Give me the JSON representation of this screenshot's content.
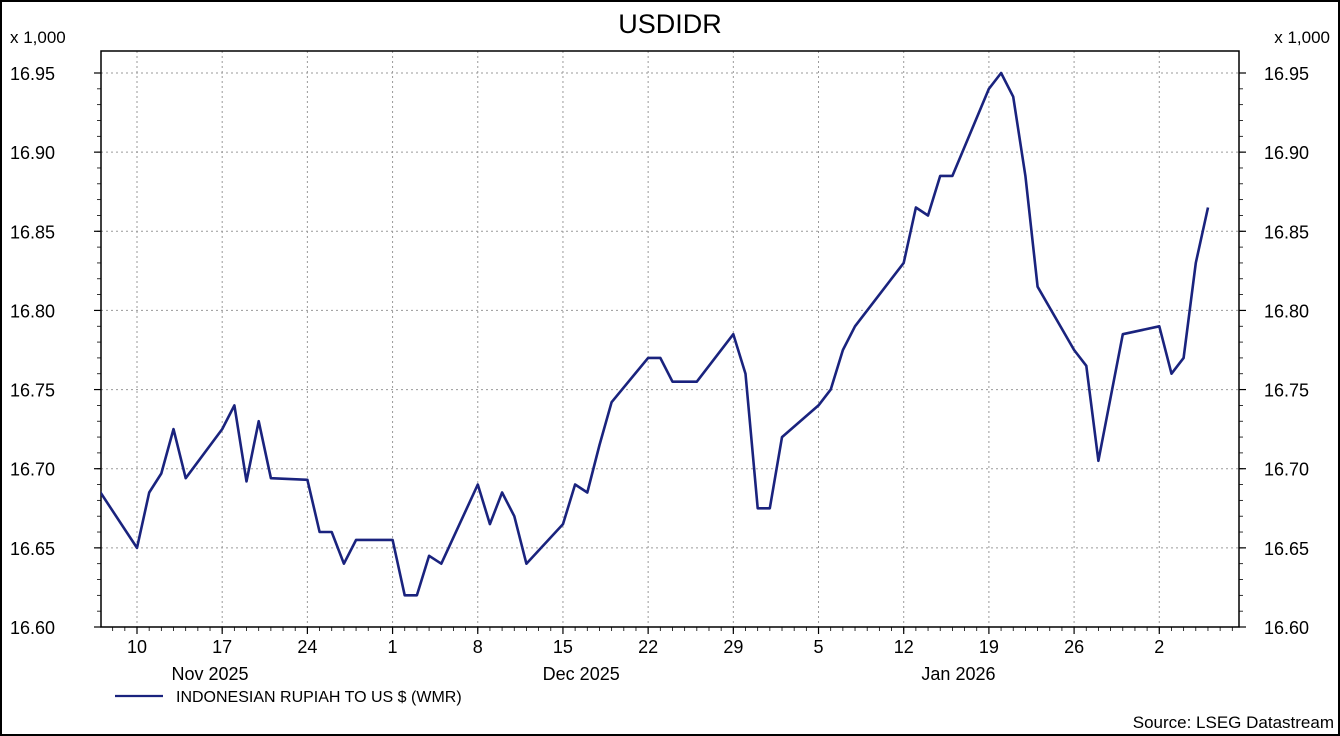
{
  "chart_data": {
    "type": "line",
    "title": "USDIDR",
    "y_unit_left": "x 1,000",
    "y_unit_right": "x 1,000",
    "ylim": [
      16.6,
      16.955
    ],
    "yticks": [
      "16.95",
      "16.90",
      "16.85",
      "16.80",
      "16.75",
      "16.70",
      "16.65",
      "16.60"
    ],
    "ytick_values": [
      16.95,
      16.9,
      16.85,
      16.8,
      16.75,
      16.7,
      16.65,
      16.6
    ],
    "xtick_labels": [
      "10",
      "17",
      "24",
      "1",
      "8",
      "15",
      "22",
      "29",
      "5",
      "12",
      "19",
      "26",
      "2"
    ],
    "month_labels": [
      "Nov 2025",
      "Dec 2025",
      "Jan 2026"
    ],
    "grid": true,
    "legend_position": "bottom-left",
    "series": [
      {
        "name": "INDONESIAN RUPIAH TO US $ (WMR)",
        "color": "#1a237e",
        "x": [
          "2025-11-06",
          "2025-11-07",
          "2025-11-10",
          "2025-11-11",
          "2025-11-12",
          "2025-11-13",
          "2025-11-14",
          "2025-11-17",
          "2025-11-18",
          "2025-11-19",
          "2025-11-20",
          "2025-11-21",
          "2025-11-24",
          "2025-11-25",
          "2025-11-26",
          "2025-11-27",
          "2025-11-28",
          "2025-12-01",
          "2025-12-02",
          "2025-12-03",
          "2025-12-04",
          "2025-12-05",
          "2025-12-08",
          "2025-12-09",
          "2025-12-10",
          "2025-12-11",
          "2025-12-12",
          "2025-12-15",
          "2025-12-16",
          "2025-12-17",
          "2025-12-18",
          "2025-12-19",
          "2025-12-22",
          "2025-12-23",
          "2025-12-24",
          "2025-12-25",
          "2025-12-26",
          "2025-12-29",
          "2025-12-30",
          "2025-12-31",
          "2026-01-01",
          "2026-01-02",
          "2026-01-05",
          "2026-01-06",
          "2026-01-07",
          "2026-01-08",
          "2026-01-09",
          "2026-01-12",
          "2026-01-13",
          "2026-01-14",
          "2026-01-15",
          "2026-01-16",
          "2026-01-19",
          "2026-01-20",
          "2026-01-21",
          "2026-01-22",
          "2026-01-23",
          "2026-01-26",
          "2026-01-27",
          "2026-01-28",
          "2026-01-29",
          "2026-01-30",
          "2026-02-02",
          "2026-02-03",
          "2026-02-04",
          "2026-02-05",
          "2026-02-06"
        ],
        "values": [
          16.693,
          16.685,
          16.65,
          16.685,
          16.697,
          16.725,
          16.694,
          16.725,
          16.74,
          16.692,
          16.73,
          16.694,
          16.693,
          16.66,
          16.66,
          16.64,
          16.655,
          16.655,
          16.62,
          16.62,
          16.645,
          16.64,
          16.69,
          16.665,
          16.685,
          16.67,
          16.64,
          16.665,
          16.69,
          16.685,
          16.715,
          16.742,
          16.77,
          16.77,
          16.755,
          16.755,
          16.755,
          16.785,
          16.76,
          16.675,
          16.675,
          16.72,
          16.74,
          16.75,
          16.775,
          16.79,
          16.8,
          16.83,
          16.865,
          16.86,
          16.885,
          16.885,
          16.94,
          16.95,
          16.935,
          16.885,
          16.815,
          16.775,
          16.765,
          16.705,
          16.745,
          16.785,
          16.79,
          16.76,
          16.77,
          16.83,
          16.865
        ]
      }
    ]
  },
  "source": "Source: LSEG Datastream"
}
